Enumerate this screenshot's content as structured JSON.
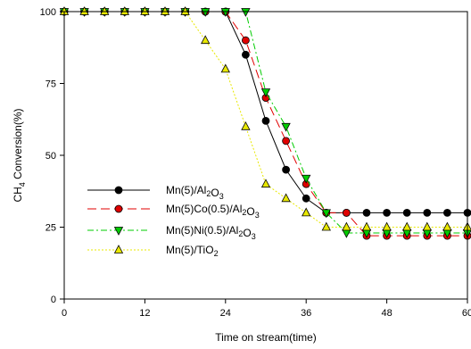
{
  "chart_data": {
    "type": "line",
    "xlabel": "Time on stream(time)",
    "ylabel": "CH4 Conversion(%)",
    "xlim": [
      0,
      60
    ],
    "ylim": [
      0,
      100
    ],
    "xticks": [
      "0",
      "12",
      "24",
      "36",
      "48",
      "60"
    ],
    "xtick_values": [
      0,
      12,
      24,
      36,
      48,
      60
    ],
    "yticks": [
      "0",
      "25",
      "50",
      "75",
      "100"
    ],
    "ytick_values": [
      0,
      25,
      50,
      75,
      100
    ],
    "legend_position": "lower-left",
    "grid": false,
    "series": [
      {
        "name": "Mn(5)/Al2O3",
        "legend": [
          {
            "t": "Mn(5)/Al",
            "sub": false
          },
          {
            "t": "2",
            "sub": true
          },
          {
            "t": "O",
            "sub": false
          },
          {
            "t": "3",
            "sub": true
          }
        ],
        "color": "#000000",
        "marker_fill": "#000000",
        "marker": "circle",
        "dash": "",
        "x": [
          0,
          3,
          6,
          9,
          12,
          15,
          18,
          21,
          24,
          27,
          30,
          33,
          36,
          39,
          42,
          45,
          48,
          51,
          54,
          57,
          60
        ],
        "y": [
          100,
          100,
          100,
          100,
          100,
          100,
          100,
          100,
          100,
          85,
          62,
          45,
          35,
          30,
          30,
          30,
          30,
          30,
          30,
          30,
          30
        ]
      },
      {
        "name": "Mn(5)Co(0.5)/Al2O3",
        "legend": [
          {
            "t": "Mn(5)Co(0.5)/Al",
            "sub": false
          },
          {
            "t": "2",
            "sub": true
          },
          {
            "t": "O",
            "sub": false
          },
          {
            "t": "3",
            "sub": true
          }
        ],
        "color": "#e00000",
        "marker_fill": "#e00000",
        "marker": "circle",
        "dash": "10,5",
        "x": [
          0,
          3,
          6,
          9,
          12,
          15,
          18,
          21,
          24,
          27,
          30,
          33,
          36,
          39,
          42,
          45,
          48,
          51,
          54,
          57,
          60
        ],
        "y": [
          100,
          100,
          100,
          100,
          100,
          100,
          100,
          100,
          100,
          90,
          70,
          55,
          40,
          30,
          30,
          22,
          22,
          22,
          22,
          22,
          22
        ]
      },
      {
        "name": "Mn(5)Ni(0.5)/Al2O3",
        "legend": [
          {
            "t": "Mn(5)Ni(0.5)/Al",
            "sub": false
          },
          {
            "t": "2",
            "sub": true
          },
          {
            "t": "O",
            "sub": false
          },
          {
            "t": "3",
            "sub": true
          }
        ],
        "color": "#00cc00",
        "marker_fill": "#00cc00",
        "marker": "triangle-down",
        "dash": "7,3,2,3",
        "x": [
          0,
          3,
          6,
          9,
          12,
          15,
          18,
          21,
          24,
          27,
          30,
          33,
          36,
          39,
          42,
          45,
          48,
          51,
          54,
          57,
          60
        ],
        "y": [
          100,
          100,
          100,
          100,
          100,
          100,
          100,
          100,
          100,
          100,
          72,
          60,
          42,
          30,
          23,
          23,
          23,
          23,
          23,
          23,
          23
        ]
      },
      {
        "name": "Mn(5)/TiO2",
        "legend": [
          {
            "t": "Mn(5)/TiO",
            "sub": false
          },
          {
            "t": "2",
            "sub": true
          }
        ],
        "color": "#e8e800",
        "marker_fill": "#e8e800",
        "marker": "triangle-up",
        "dash": "2,2",
        "x": [
          0,
          3,
          6,
          9,
          12,
          15,
          18,
          21,
          24,
          27,
          30,
          33,
          36,
          39,
          42,
          45,
          48,
          51,
          54,
          57,
          60
        ],
        "y": [
          100,
          100,
          100,
          100,
          100,
          100,
          100,
          90,
          80,
          60,
          40,
          35,
          30,
          25,
          25,
          25,
          25,
          25,
          25,
          25,
          25
        ]
      }
    ]
  }
}
